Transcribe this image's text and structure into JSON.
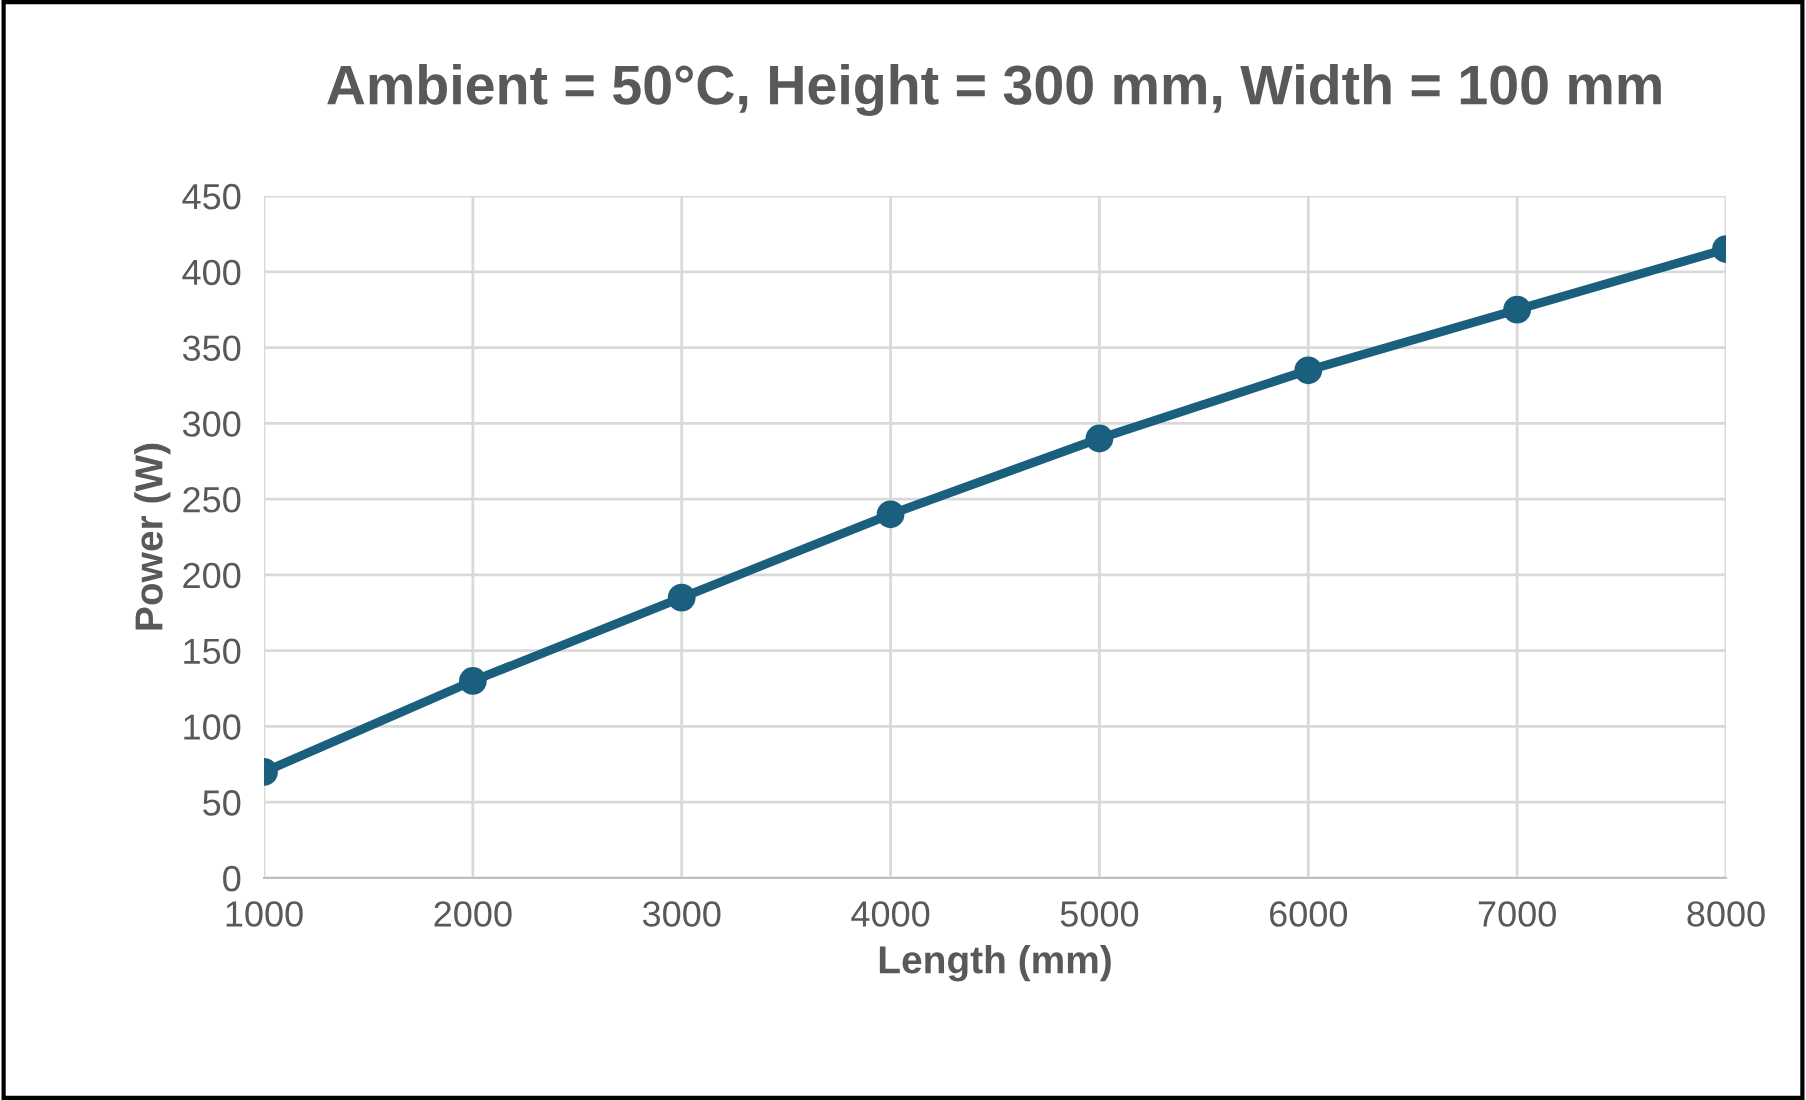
{
  "chart_data": {
    "type": "line",
    "title": "Ambient = 50°C, Height = 300 mm, Width = 100 mm",
    "xlabel": "Length (mm)",
    "ylabel": "Power (W)",
    "x": [
      1000,
      2000,
      3000,
      4000,
      5000,
      6000,
      7000,
      8000
    ],
    "series": [
      {
        "color": "#1b5f7e",
        "values": [
          70,
          130,
          185,
          240,
          290,
          335,
          375,
          415
        ]
      }
    ],
    "xlim": [
      1000,
      8000
    ],
    "xticks": [
      1000,
      2000,
      3000,
      4000,
      5000,
      6000,
      7000,
      8000
    ],
    "ylim": [
      0,
      450
    ],
    "yticks": [
      0,
      50,
      100,
      150,
      200,
      250,
      300,
      350,
      400,
      450
    ],
    "grid": true,
    "marker": "circle",
    "line_style": "solid",
    "legend": false
  }
}
